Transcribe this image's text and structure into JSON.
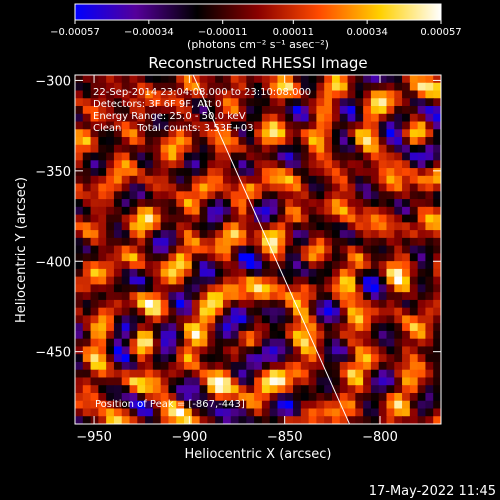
{
  "chart_data": {
    "type": "heatmap",
    "title": "Reconstructed RHESSI Image",
    "xlabel": "Heliocentric X (arcsec)",
    "ylabel": "Heliocentric Y (arcsec)",
    "xlim": [
      -960,
      -768
    ],
    "ylim": [
      -490,
      -297
    ],
    "x_ticks": [
      -950,
      -900,
      -850,
      -800
    ],
    "x_tick_labels": [
      "−950",
      "−900",
      "−850",
      "−800"
    ],
    "y_ticks": [
      -300,
      -350,
      -400,
      -450
    ],
    "y_tick_labels": [
      "−300",
      "−350",
      "−400",
      "−450"
    ],
    "colorbar": {
      "range": [
        -0.00057,
        0.00057
      ],
      "tick_values": [
        -0.00057,
        -0.00034,
        -0.00011,
        0.00011,
        0.00034,
        0.00057
      ],
      "tick_labels": [
        "−0.00057",
        "−0.00034",
        "−0.00011",
        "0.00011",
        "0.00034",
        "0.00057"
      ],
      "unit_label": "(photons cm⁻² s⁻¹ asec⁻²)",
      "colors": [
        "#0000ff",
        "#55009a",
        "#000000",
        "#8a0000",
        "#ff4a00",
        "#ffd000",
        "#ffffff"
      ]
    },
    "annotations": [
      "22-Sep-2014 23:04:08.000 to 23:10:08.000",
      "Detectors: 3F 6F 9F, Att 0",
      "Energy Range: 25.0 - 50.0 keV",
      "Clean     Total counts: 3.53E+03",
      "Position of Peak = [-867,-443]"
    ],
    "peak": [
      -867,
      -443
    ],
    "limb_line": [
      [
        -898,
        -297
      ],
      [
        -816,
        -490
      ]
    ],
    "grid": false
  },
  "footer": {
    "date": "17-May-2022 11:45"
  }
}
